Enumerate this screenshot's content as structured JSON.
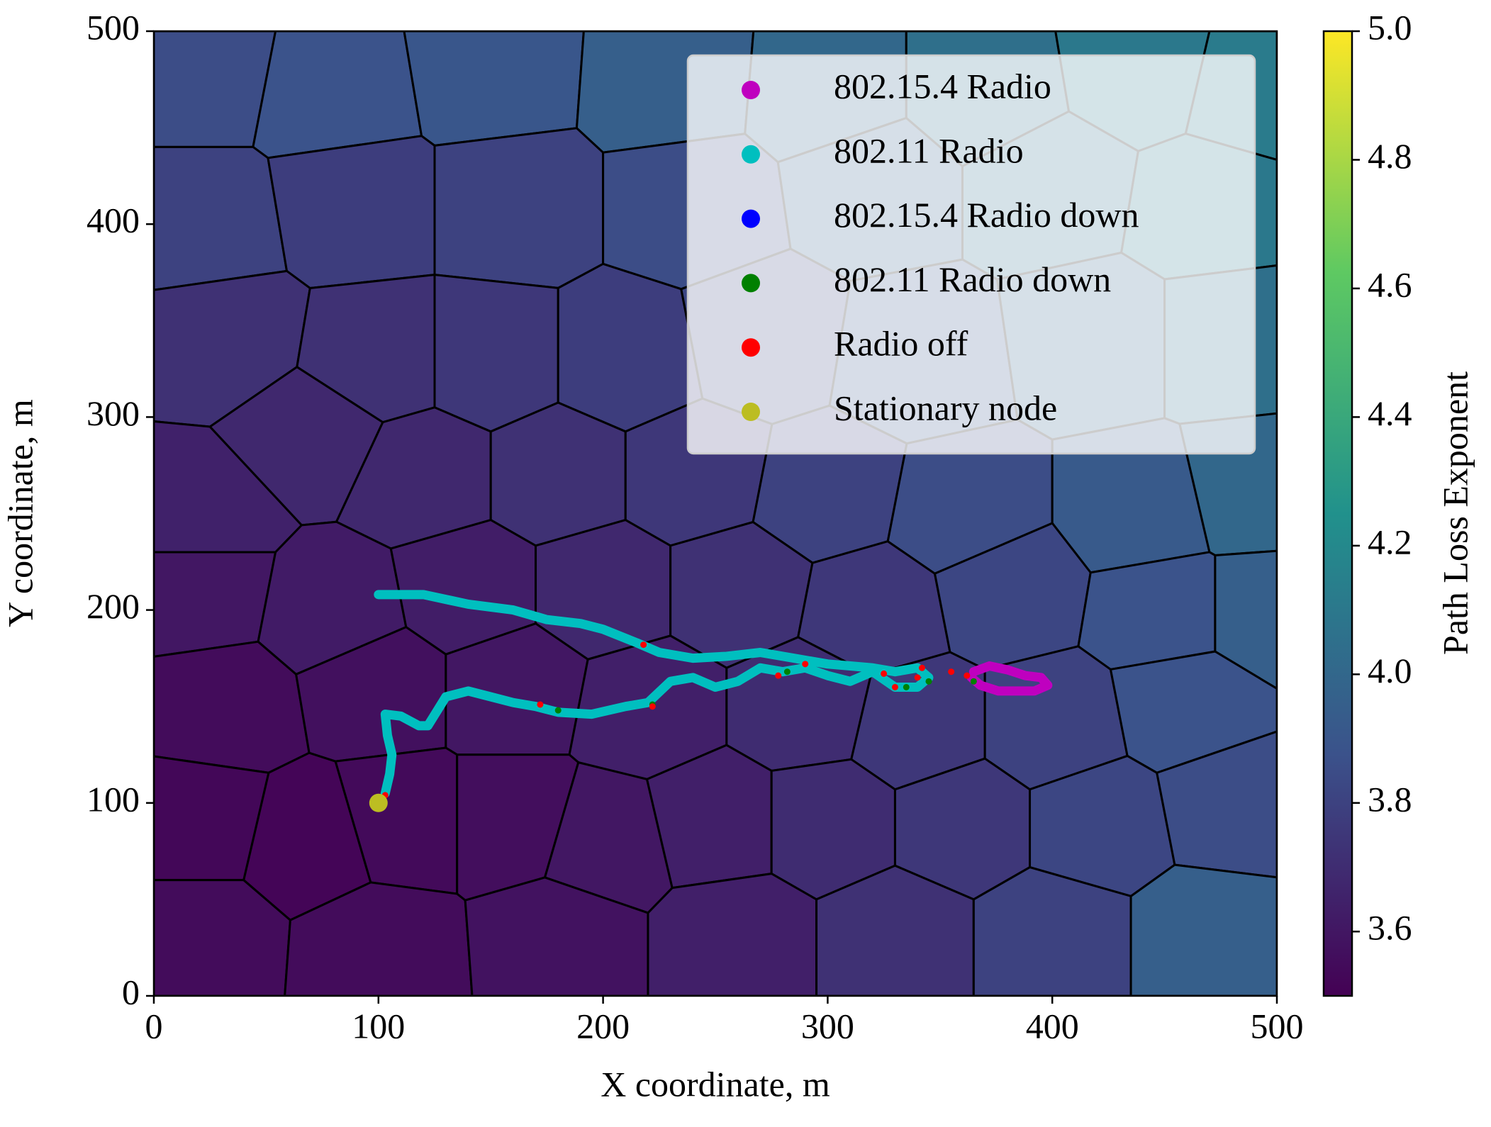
{
  "chart_data": {
    "type": "scatter",
    "xlabel": "X coordinate, m",
    "ylabel": "Y coordinate, m",
    "colorbar_label": "Path Loss Exponent",
    "xlim": [
      0,
      500
    ],
    "ylim": [
      0,
      500
    ],
    "xticks": [
      0,
      100,
      200,
      300,
      400,
      500
    ],
    "yticks": [
      0,
      100,
      200,
      300,
      400,
      500
    ],
    "colormap": "viridis",
    "clim": [
      3.5,
      5.0
    ],
    "cticks": [
      3.6,
      3.8,
      {
        "value": 4.0,
        "label": "4.0"
      },
      4.2,
      4.4,
      4.6,
      4.8,
      {
        "value": 5.0,
        "label": "5.0"
      }
    ],
    "legend": "upper right",
    "cells": {
      "x": [
        20,
        80,
        150,
        230,
        300,
        370,
        440,
        490,
        20,
        90,
        160,
        240,
        320,
        400,
        470,
        30,
        100,
        150,
        210,
        270,
        340,
        420,
        480,
        20,
        70,
        120,
        180,
        240,
        300,
        360,
        440,
        490,
        20,
        80,
        140,
        200,
        260,
        320,
        380,
        450,
        495,
        30,
        100,
        160,
        220,
        290,
        340,
        400,
        460,
        20,
        70,
        110,
        160,
        200,
        250,
        300,
        360,
        420,
        480,
        20,
        100,
        180,
        260,
        330,
        400,
        470
      ],
      "y": [
        480,
        470,
        480,
        475,
        470,
        470,
        480,
        470,
        400,
        410,
        410,
        410,
        420,
        420,
        410,
        340,
        330,
        330,
        330,
        340,
        330,
        340,
        340,
        250,
        290,
        270,
        270,
        270,
        260,
        250,
        250,
        260,
        210,
        200,
        210,
        210,
        210,
        200,
        210,
        200,
        200,
        150,
        160,
        160,
        150,
        150,
        140,
        140,
        150,
        90,
        80,
        90,
        90,
        80,
        90,
        90,
        90,
        90,
        100,
        30,
        25,
        30,
        30,
        30,
        30,
        30
      ],
      "values": [
        3.85,
        3.88,
        3.9,
        3.95,
        4.0,
        4.05,
        4.1,
        4.12,
        3.8,
        3.78,
        3.8,
        3.85,
        3.95,
        4.05,
        4.1,
        3.72,
        3.72,
        3.75,
        3.78,
        3.82,
        3.9,
        3.98,
        4.05,
        3.65,
        3.68,
        3.68,
        3.72,
        3.75,
        3.8,
        3.85,
        3.92,
        4.0,
        3.6,
        3.62,
        3.63,
        3.68,
        3.72,
        3.75,
        3.82,
        3.88,
        3.95,
        3.55,
        3.57,
        3.6,
        3.64,
        3.7,
        3.75,
        3.8,
        3.88,
        3.53,
        3.52,
        3.54,
        3.56,
        3.6,
        3.64,
        3.7,
        3.75,
        3.82,
        3.85,
        3.55,
        3.55,
        3.58,
        3.64,
        3.72,
        3.8,
        3.95
      ]
    },
    "series": [
      {
        "name": "802.15.4 Radio",
        "color": "#bf00bf",
        "x": [
          365,
          372,
          380,
          388,
          395,
          398,
          392,
          384,
          376,
          368,
          364
        ],
        "values": [
          168,
          171,
          169,
          166,
          165,
          161,
          158,
          158,
          158,
          161,
          165
        ]
      },
      {
        "name": "802.11 Radio",
        "color": "#00bfbf",
        "x": [
          103,
          105,
          106,
          104,
          103,
          110,
          118,
          122,
          130,
          140,
          150,
          160,
          170,
          180,
          195,
          210,
          220,
          230,
          240,
          250,
          260,
          270,
          280,
          290,
          300,
          310,
          320,
          330,
          340,
          345,
          340,
          330,
          320,
          310,
          300,
          285,
          270,
          255,
          240,
          225,
          215,
          200,
          190,
          175,
          160,
          140,
          120,
          100
        ],
        "values": [
          105,
          115,
          125,
          135,
          146,
          145,
          140,
          140,
          155,
          158,
          155,
          152,
          150,
          147,
          146,
          150,
          152,
          163,
          165,
          160,
          163,
          170,
          168,
          170,
          166,
          163,
          168,
          160,
          160,
          165,
          170,
          168,
          170,
          171,
          172,
          175,
          178,
          176,
          175,
          178,
          183,
          190,
          193,
          195,
          200,
          203,
          208,
          208
        ]
      },
      {
        "name": "802.15.4 Radio down",
        "color": "#0000ff",
        "x": [],
        "values": []
      },
      {
        "name": "802.11 Radio down",
        "color": "#008000",
        "x": [
          180,
          222,
          282,
          335,
          345,
          365
        ],
        "values": [
          148,
          151,
          168,
          160,
          163,
          163
        ]
      },
      {
        "name": "Radio off",
        "color": "#ff0000",
        "x": [
          103,
          172,
          218,
          222,
          278,
          290,
          325,
          330,
          340,
          342,
          355,
          362
        ],
        "values": [
          104,
          151,
          182,
          150,
          166,
          172,
          167,
          160,
          165,
          170,
          168,
          166
        ]
      },
      {
        "name": "Stationary node",
        "color": "#bcbd22",
        "x": [
          100
        ],
        "values": [
          100
        ]
      }
    ]
  }
}
